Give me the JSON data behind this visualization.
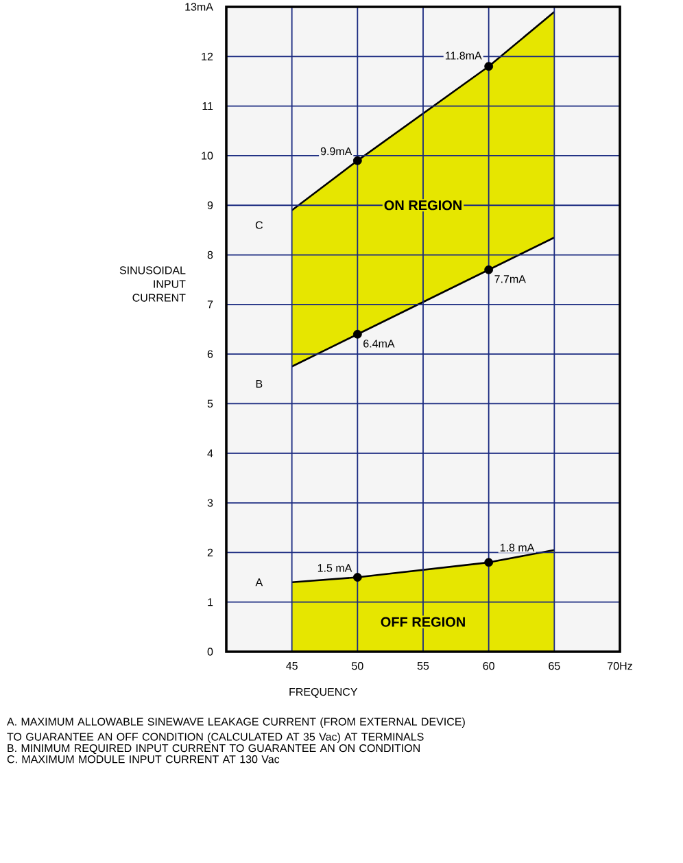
{
  "chart_data": {
    "type": "area",
    "xlabel": "FREQUENCY",
    "ylabel": "SINUSOIDAL INPUT CURRENT",
    "xlim": [
      40,
      70
    ],
    "ylim": [
      0,
      13
    ],
    "xticks": [
      45,
      50,
      55,
      60,
      65,
      {
        "value": 70,
        "label": "70Hz"
      }
    ],
    "yticks": [
      0,
      1,
      2,
      3,
      4,
      5,
      6,
      7,
      8,
      9,
      10,
      11,
      12,
      {
        "value": 13,
        "label": "13mA"
      }
    ],
    "grid": true,
    "series": [
      {
        "color": "#e6e600",
        "x": [
          45,
          50,
          60,
          65
        ],
        "values": [
          1.4,
          1.5,
          1.8,
          2.05
        ]
      },
      {
        "type": "line",
        "color": "#000000",
        "x": [
          45,
          50,
          60,
          65
        ],
        "values": [
          8.9,
          9.9,
          11.8,
          12.9
        ],
        "lower": [
          5.75,
          6.4,
          7.7,
          8.35
        ],
        "upper": [
          8.9,
          9.9,
          11.8,
          12.9
        ]
      },
      {
        "type": "line",
        "color": "#000000",
        "x": [
          45,
          50,
          60,
          65
        ],
        "values": [
          5.75,
          6.4,
          7.7,
          8.35
        ]
      },
      {
        "type": "scatter",
        "color": "#000000",
        "marker": "circle",
        "x": [
          50,
          60,
          50,
          60,
          50,
          60
        ],
        "values": [
          9.9,
          11.8,
          6.4,
          7.7,
          1.5,
          1.8
        ],
        "value_labels": [
          "9.9mA",
          "11.8mA",
          "6.4mA",
          "7.7mA",
          "1.5 mA",
          "1.8 mA"
        ]
      }
    ],
    "annotations": [
      "ON REGION",
      "OFF REGION",
      "A",
      "B",
      "C",
      "A.   MAXIMUM ALLOWABLE SINEWAVE LEAKAGE CURRENT (FROM EXTERNAL DEVICE) TO GUARANTEE AN OFF CONDITION (CALCULATED AT 35 Vac) AT TERMINALS",
      "B.   MINIMUM REQUIRED INPUT CURRENT TO GUARANTEE AN ON CONDITION",
      "C.   MAXIMUM MODULE INPUT CURRENT AT 130 Vac"
    ]
  }
}
